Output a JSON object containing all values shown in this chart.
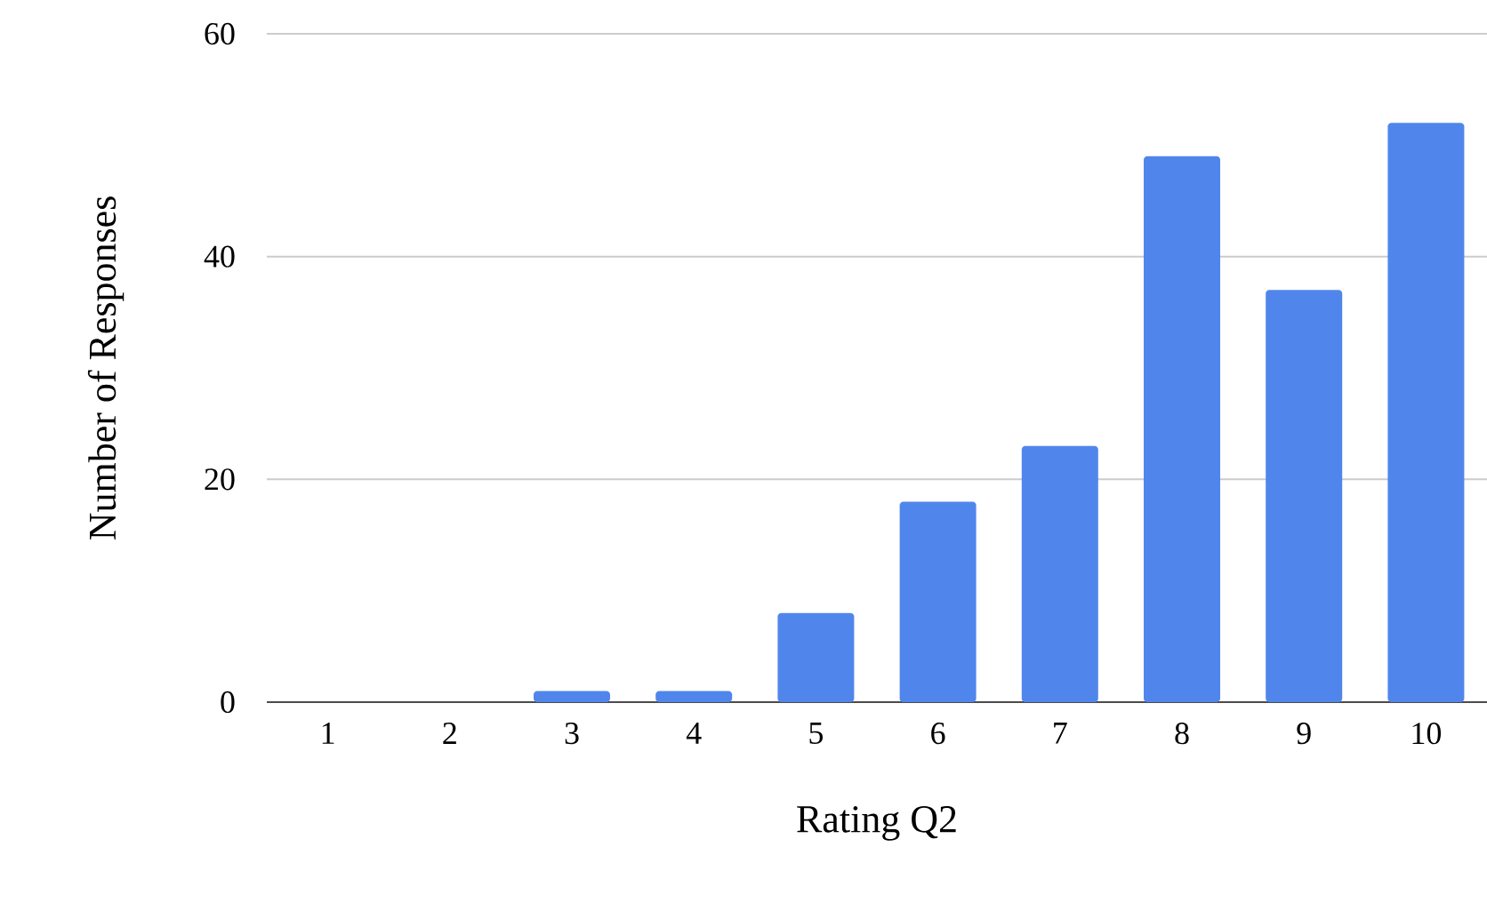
{
  "chart_data": {
    "type": "bar",
    "xlabel": "Rating Q2",
    "ylabel": "Number of Responses",
    "categories": [
      "1",
      "2",
      "3",
      "4",
      "5",
      "6",
      "7",
      "8",
      "9",
      "10"
    ],
    "values": [
      0,
      0,
      1,
      1,
      8,
      18,
      23,
      49,
      37,
      52
    ],
    "color": "#5086ec",
    "ylim": [
      0,
      60
    ],
    "yticks": [
      0,
      20,
      40,
      60
    ],
    "grid": "y"
  }
}
